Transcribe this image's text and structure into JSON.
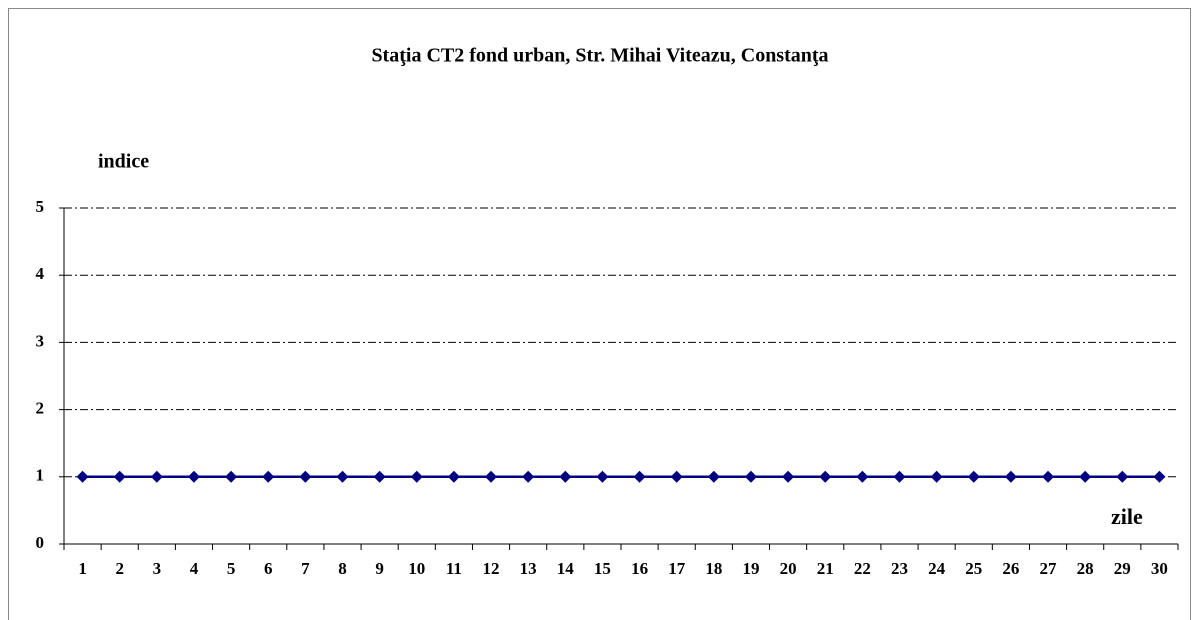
{
  "chart_data": {
    "type": "line",
    "title": "Staţia CT2 fond urban,  Str. Mihai Viteazu, Constanţa",
    "y_label": "indice",
    "x_label": "zile",
    "categories": [
      1,
      2,
      3,
      4,
      5,
      6,
      7,
      8,
      9,
      10,
      11,
      12,
      13,
      14,
      15,
      16,
      17,
      18,
      19,
      20,
      21,
      22,
      23,
      24,
      25,
      26,
      27,
      28,
      29,
      30
    ],
    "series": [
      {
        "color": "#000080",
        "values": [
          1,
          1,
          1,
          1,
          1,
          1,
          1,
          1,
          1,
          1,
          1,
          1,
          1,
          1,
          1,
          1,
          1,
          1,
          1,
          1,
          1,
          1,
          1,
          1,
          1,
          1,
          1,
          1,
          1,
          1
        ]
      }
    ],
    "ylim": [
      0,
      5
    ],
    "yticks": [
      0,
      1,
      2,
      3,
      4,
      5
    ],
    "grid": true
  }
}
